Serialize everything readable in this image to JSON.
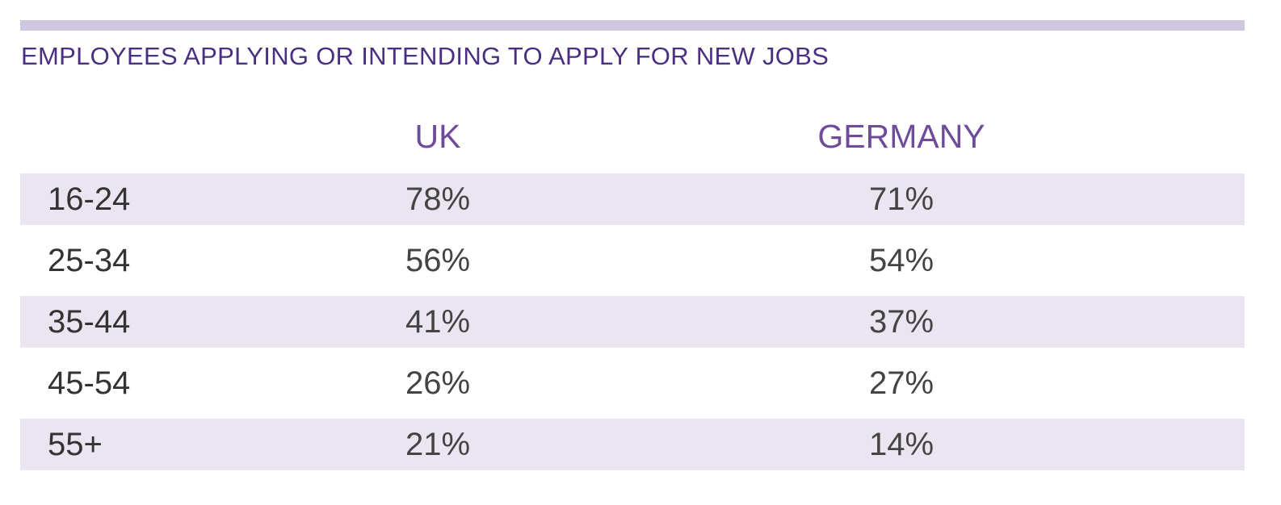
{
  "colors": {
    "rule": "#d1c6e0",
    "title": "#4a2f82",
    "column_header": "#6e4c9a",
    "row_shade": "#eae5f1"
  },
  "chart_data": {
    "type": "table",
    "title": "EMPLOYEES APPLYING OR INTENDING TO APPLY FOR NEW JOBS",
    "columns": [
      "UK",
      "GERMANY"
    ],
    "rows": [
      {
        "label": "16-24",
        "uk": "78%",
        "germany": "71%"
      },
      {
        "label": "25-34",
        "uk": "56%",
        "germany": "54%"
      },
      {
        "label": "35-44",
        "uk": "41%",
        "germany": "37%"
      },
      {
        "label": "45-54",
        "uk": "26%",
        "germany": "27%"
      },
      {
        "label": "55+",
        "uk": "21%",
        "germany": "14%"
      }
    ]
  }
}
